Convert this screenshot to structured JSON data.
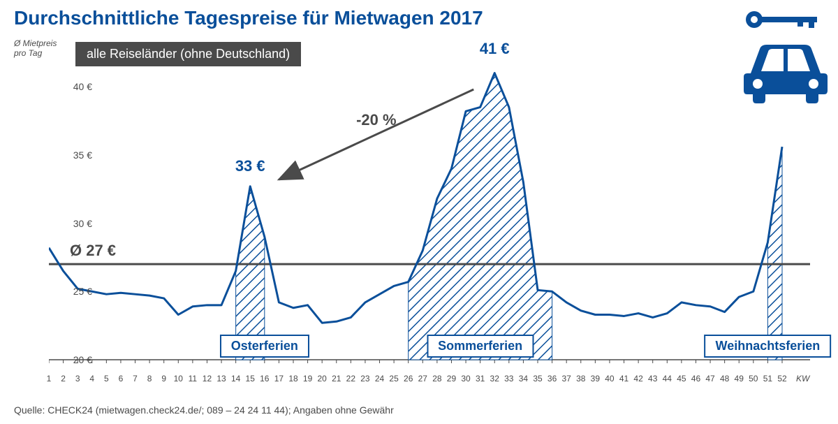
{
  "title": "Durchschnittliche Tagespreise für Mietwagen 2017",
  "ylabel_line1": "Ø Mietpreis",
  "ylabel_line2": "pro Tag",
  "filter_box": "alle Reiseländer (ohne Deutschland)",
  "source": "Quelle: CHECK24 (mietwagen.check24.de/; 089 – 24 24 11 44); Angaben ohne Gewähr",
  "chart": {
    "type": "area-line",
    "x_label_unit": "KW",
    "x_min": 1,
    "x_max": 52,
    "ylim": [
      20,
      42
    ],
    "yticks": [
      20,
      25,
      30,
      35,
      40
    ],
    "ytick_suffix": " €",
    "series": [
      28.2,
      26.5,
      25.2,
      25.0,
      24.8,
      24.9,
      24.8,
      24.7,
      24.5,
      23.3,
      23.9,
      24.0,
      24.0,
      26.5,
      32.7,
      29.0,
      24.2,
      23.8,
      24.0,
      22.7,
      22.8,
      23.1,
      24.2,
      24.8,
      25.4,
      25.7,
      28.0,
      31.8,
      34.0,
      38.2,
      38.5,
      41.0,
      38.5,
      33.0,
      25.1,
      25.0,
      24.2,
      23.6,
      23.3,
      23.3,
      23.2,
      23.4,
      23.1,
      23.4,
      24.2,
      24.0,
      23.9,
      23.5,
      24.6,
      25.0,
      28.6,
      35.6
    ],
    "holiday_ranges": [
      {
        "name": "Osterferien",
        "start": 14,
        "end": 16,
        "box_x": 16
      },
      {
        "name": "Sommerferien",
        "start": 26,
        "end": 36,
        "box_x": 31
      },
      {
        "name": "Weihnachtsferien",
        "start": 51,
        "end": 52,
        "box_x": 51
      }
    ],
    "avg_line_value": 27.0,
    "avg_line_label": "Ø 27 €",
    "peaks": [
      {
        "x": 15,
        "label": "33 €",
        "yoffset": -290
      },
      {
        "x": 32,
        "label": "41 €",
        "yoffset": -458
      }
    ],
    "arrow": {
      "from_x": 32,
      "from_rely": 0.1,
      "to_x": 17,
      "to_rely": 0.4,
      "label": "-20 %"
    },
    "line_color": "#0a4f9a",
    "line_width": 3,
    "hatch_color": "#0a4f9a",
    "avg_line_color": "#4a4a4a",
    "background": "#ffffff"
  },
  "icons": {
    "key_color": "#0a4f9a",
    "car_color": "#0a4f9a"
  }
}
